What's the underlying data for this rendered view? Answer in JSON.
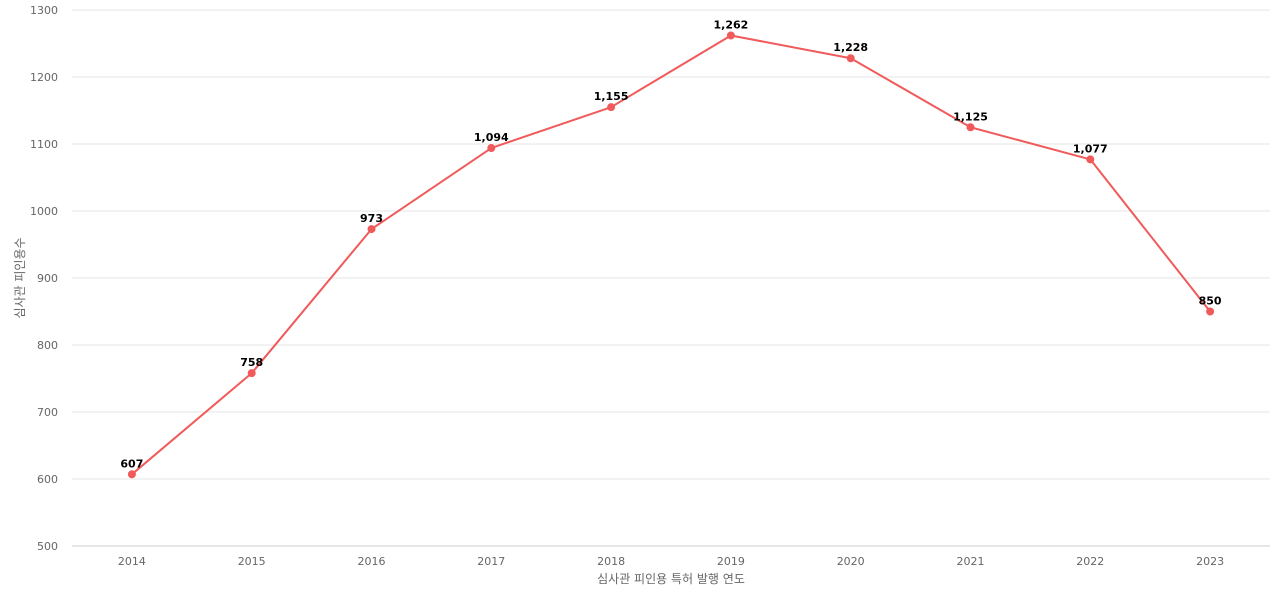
{
  "chart_data": {
    "type": "line",
    "title": "",
    "xlabel": "심사관 피인용 특허 발행 연도",
    "ylabel": "심사관 피인용수",
    "categories": [
      "2014",
      "2015",
      "2016",
      "2017",
      "2018",
      "2019",
      "2020",
      "2021",
      "2022",
      "2023"
    ],
    "series": [
      {
        "values": [
          607,
          758,
          973,
          1094,
          1155,
          1262,
          1228,
          1125,
          1077,
          850
        ],
        "labels": [
          "607",
          "758",
          "973",
          "1,094",
          "1,155",
          "1,262",
          "1,228",
          "1,125",
          "1,077",
          "850"
        ],
        "color": "#f05a5a"
      }
    ],
    "ylim": [
      500,
      1300
    ],
    "yticks": [
      "500",
      "600",
      "700",
      "800",
      "900",
      "1000",
      "1100",
      "1200",
      "1300"
    ],
    "grid": true,
    "legend": "none"
  }
}
